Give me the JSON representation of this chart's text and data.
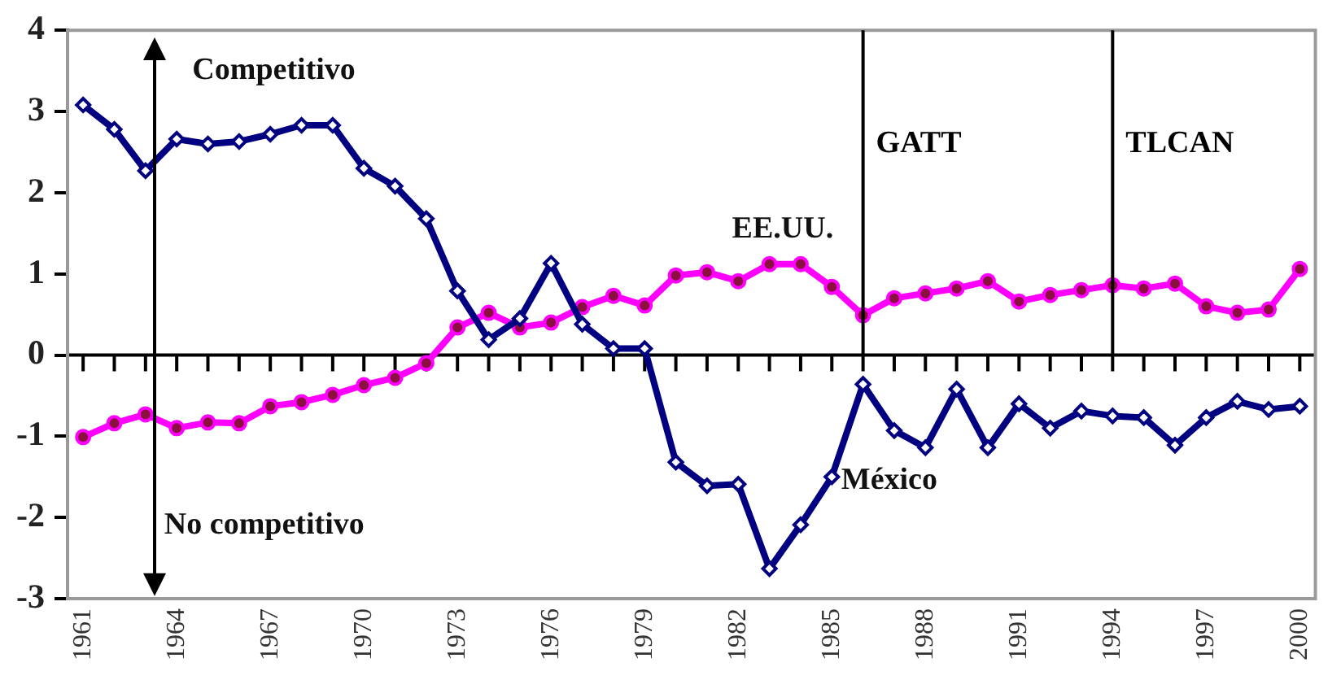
{
  "chart_data": {
    "type": "line",
    "x": [
      1961,
      1962,
      1963,
      1964,
      1965,
      1966,
      1967,
      1968,
      1969,
      1970,
      1971,
      1972,
      1973,
      1974,
      1975,
      1976,
      1977,
      1978,
      1979,
      1980,
      1981,
      1982,
      1983,
      1984,
      1985,
      1986,
      1987,
      1988,
      1989,
      1990,
      1991,
      1992,
      1993,
      1994,
      1995,
      1996,
      1997,
      1998,
      1999,
      2000
    ],
    "series": [
      {
        "name": "México",
        "color": "#000080",
        "marker": "diamond",
        "values": [
          3.08,
          2.78,
          2.27,
          2.66,
          2.6,
          2.63,
          2.72,
          2.83,
          2.83,
          2.3,
          2.08,
          1.68,
          0.79,
          0.19,
          0.45,
          1.13,
          0.38,
          0.08,
          0.08,
          -1.32,
          -1.61,
          -1.59,
          -2.63,
          -2.09,
          -1.5,
          -0.36,
          -0.93,
          -1.14,
          -0.42,
          -1.14,
          -0.6,
          -0.9,
          -0.69,
          -0.75,
          -0.77,
          -1.11,
          -0.77,
          -0.57,
          -0.67,
          -0.63
        ]
      },
      {
        "name": "EE.UU.",
        "color": "#ff00ff",
        "marker": "circle",
        "values": [
          -1.01,
          -0.84,
          -0.73,
          -0.9,
          -0.83,
          -0.84,
          -0.63,
          -0.58,
          -0.49,
          -0.37,
          -0.28,
          -0.1,
          0.34,
          0.52,
          0.34,
          0.4,
          0.59,
          0.73,
          0.61,
          0.98,
          1.02,
          0.91,
          1.12,
          1.12,
          0.84,
          0.49,
          0.7,
          0.76,
          0.82,
          0.91,
          0.66,
          0.74,
          0.8,
          0.86,
          0.82,
          0.88,
          0.6,
          0.52,
          0.56,
          1.06
        ]
      }
    ],
    "xlim": [
      1960.5,
      2000.5
    ],
    "xticks": [
      1961,
      {
        "value": 1962,
        "label": null
      },
      {
        "value": 1963,
        "label": null
      },
      1964,
      {
        "value": 1965,
        "label": null
      },
      {
        "value": 1966,
        "label": null
      },
      1967,
      {
        "value": 1968,
        "label": null
      },
      {
        "value": 1969,
        "label": null
      },
      1970,
      {
        "value": 1971,
        "label": null
      },
      {
        "value": 1972,
        "label": null
      },
      1973,
      {
        "value": 1974,
        "label": null
      },
      {
        "value": 1975,
        "label": null
      },
      1976,
      {
        "value": 1977,
        "label": null
      },
      {
        "value": 1978,
        "label": null
      },
      1979,
      {
        "value": 1980,
        "label": null
      },
      {
        "value": 1981,
        "label": null
      },
      1982,
      {
        "value": 1983,
        "label": null
      },
      {
        "value": 1984,
        "label": null
      },
      1985,
      {
        "value": 1986,
        "label": null
      },
      {
        "value": 1987,
        "label": null
      },
      1988,
      {
        "value": 1989,
        "label": null
      },
      {
        "value": 1990,
        "label": null
      },
      1991,
      {
        "value": 1992,
        "label": null
      },
      {
        "value": 1993,
        "label": null
      },
      1994,
      {
        "value": 1995,
        "label": null
      },
      {
        "value": 1996,
        "label": null
      },
      1997,
      {
        "value": 1998,
        "label": null
      },
      {
        "value": 1999,
        "label": null
      },
      2000
    ],
    "ylim": [
      -3,
      4
    ],
    "yticks": [
      -3,
      -2,
      -1,
      0,
      1,
      2,
      3,
      4
    ],
    "ref_lines": [
      {
        "axis": "x",
        "value": 1986,
        "label": "GATT",
        "color": "#000000"
      },
      {
        "axis": "x",
        "value": 1994,
        "label": "TLCAN",
        "color": "#000000"
      }
    ],
    "annotations": [
      "Competitivo",
      "No competitivo"
    ]
  }
}
